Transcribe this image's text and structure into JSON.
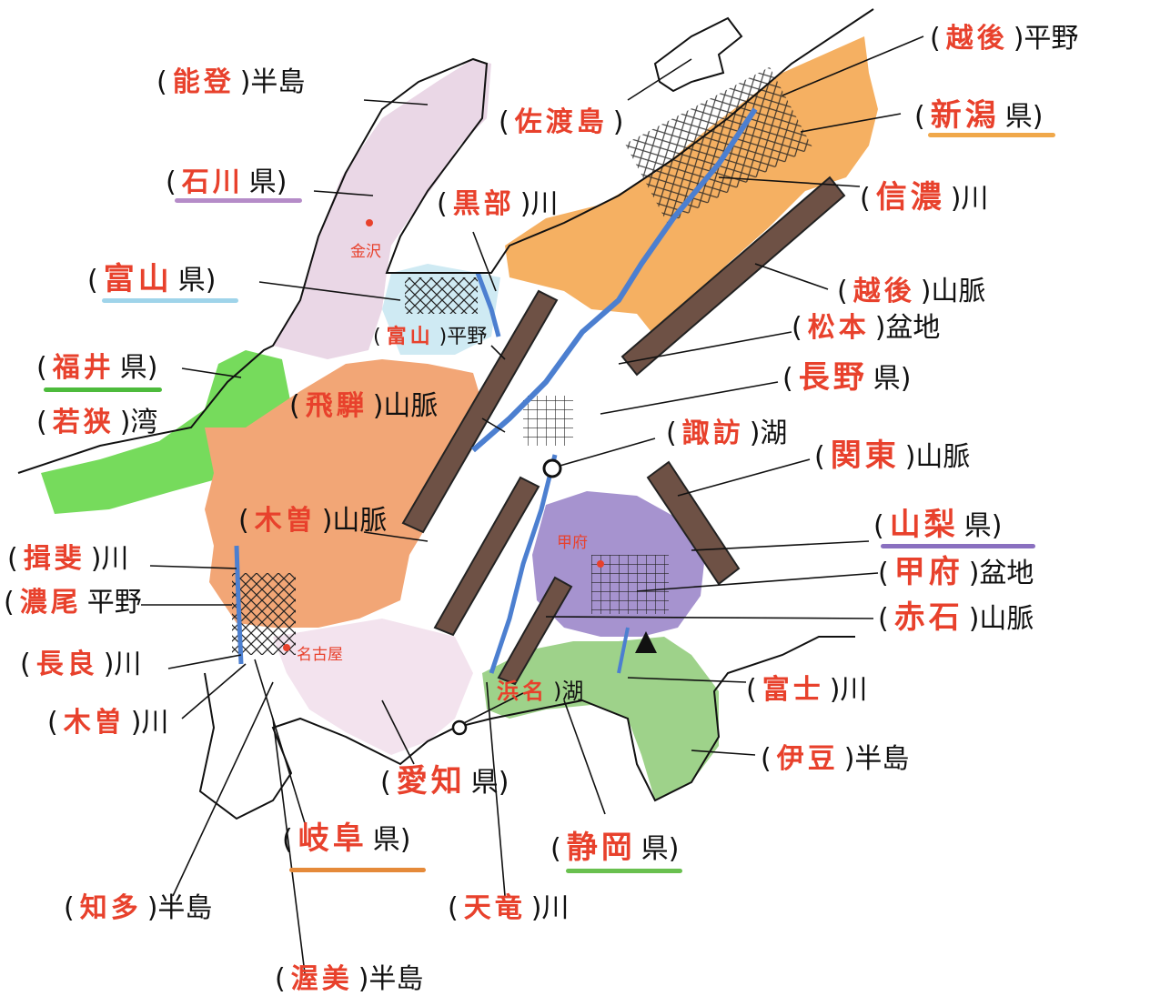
{
  "colors": {
    "answer_red": "#e8412c",
    "ink": "#111111",
    "ishikawa_pink": "#ead7e6",
    "fukui_green": "#76db5c",
    "gifu_orange": "#f2a676",
    "aichi_pink": "#f3e3ee",
    "nagano_white": "#ffffff",
    "niigata_orange": "#f5b062",
    "yamanashi_purple": "#a693cf",
    "shizuoka_green": "#9ed28a",
    "mountain_brown": "#6e5145",
    "river_blue": "#4c7fd0",
    "toyama_lightblue": "#cfeaf3"
  },
  "underline_colors": {
    "ishikawa": "#b58cc8",
    "toyama": "#9fd4ea",
    "fukui": "#4dbb3c",
    "niigata": "#f0a84a",
    "yamanashi": "#8a70c0",
    "gifu": "#e58a3a",
    "shizuoka": "#69c04f"
  },
  "labels": {
    "noto": {
      "open": "(",
      "answer": "能登",
      "close": ")半島"
    },
    "sado": {
      "open": "(",
      "answer": "佐渡島",
      "close": ")"
    },
    "echigo_plain": {
      "open": "(",
      "answer": "越後",
      "close": ")平野"
    },
    "niigata": {
      "open": "(",
      "answer": "新潟",
      "close": "県)"
    },
    "ishikawa": {
      "open": "(",
      "answer": "石川",
      "close": "県)"
    },
    "kurobe": {
      "open": "(",
      "answer": "黒部",
      "close": ")川"
    },
    "shinano": {
      "open": "(",
      "answer": "信濃",
      "close": ")川"
    },
    "toyama_pref": {
      "open": "(",
      "answer": "富山",
      "close": "県)"
    },
    "echigo_mts": {
      "open": "(",
      "answer": "越後",
      "close": ")山脈"
    },
    "toyama_plain": {
      "open": "(",
      "answer": "富山",
      "close": ")平野"
    },
    "matsumoto": {
      "open": "(",
      "answer": "松本",
      "close": ")盆地"
    },
    "fukui": {
      "open": "(",
      "answer": "福井",
      "close": "県)"
    },
    "nagano": {
      "open": "(",
      "answer": "長野",
      "close": "県)"
    },
    "hida": {
      "open": "(",
      "answer": "飛騨",
      "close": ")山脈"
    },
    "wakasa": {
      "open": "(",
      "answer": "若狭",
      "close": ")湾"
    },
    "suwa": {
      "open": "(",
      "answer": "諏訪",
      "close": ")湖"
    },
    "kanto": {
      "open": "(",
      "answer": "関東",
      "close": ")山脈"
    },
    "kiso_mts": {
      "open": "(",
      "answer": "木曽",
      "close": ")山脈"
    },
    "yamanashi": {
      "open": "(",
      "answer": "山梨",
      "close": "県)"
    },
    "ibi": {
      "open": "(",
      "answer": "揖斐",
      "close": ")川"
    },
    "kofu_basin": {
      "open": "(",
      "answer": "甲府",
      "close": ")盆地"
    },
    "nobi": {
      "open": "(",
      "answer": "濃尾",
      "close": "平野"
    },
    "akaishi": {
      "open": "(",
      "answer": "赤石",
      "close": ")山脈"
    },
    "nagara": {
      "open": "(",
      "answer": "長良",
      "close": ")川"
    },
    "hamana": {
      "open": "",
      "answer": "浜名",
      "close": ")湖"
    },
    "fuji": {
      "open": "(",
      "answer": "富士",
      "close": ")川"
    },
    "kiso_river": {
      "open": "(",
      "answer": "木曽",
      "close": ")川"
    },
    "izu": {
      "open": "(",
      "answer": "伊豆",
      "close": ")半島"
    },
    "aichi": {
      "open": "(",
      "answer": "愛知",
      "close": "県)"
    },
    "gifu": {
      "open": "(",
      "answer": "岐阜",
      "close": "県)"
    },
    "shizuoka": {
      "open": "(",
      "answer": "静岡",
      "close": "県)"
    },
    "chita": {
      "open": "(",
      "answer": "知多",
      "close": ")半島"
    },
    "tenryu": {
      "open": "(",
      "answer": "天竜",
      "close": ")川"
    },
    "atsumi": {
      "open": "(",
      "answer": "渥美",
      "close": ")半島"
    }
  },
  "cities": {
    "kanazawa": "金沢",
    "kofu": "甲府",
    "nagoya": "名古屋"
  },
  "icons": {
    "mount_fuji": "triangle-mountain-icon",
    "lake": "circle-lake-icon",
    "city": "red-dot-city-icon"
  }
}
